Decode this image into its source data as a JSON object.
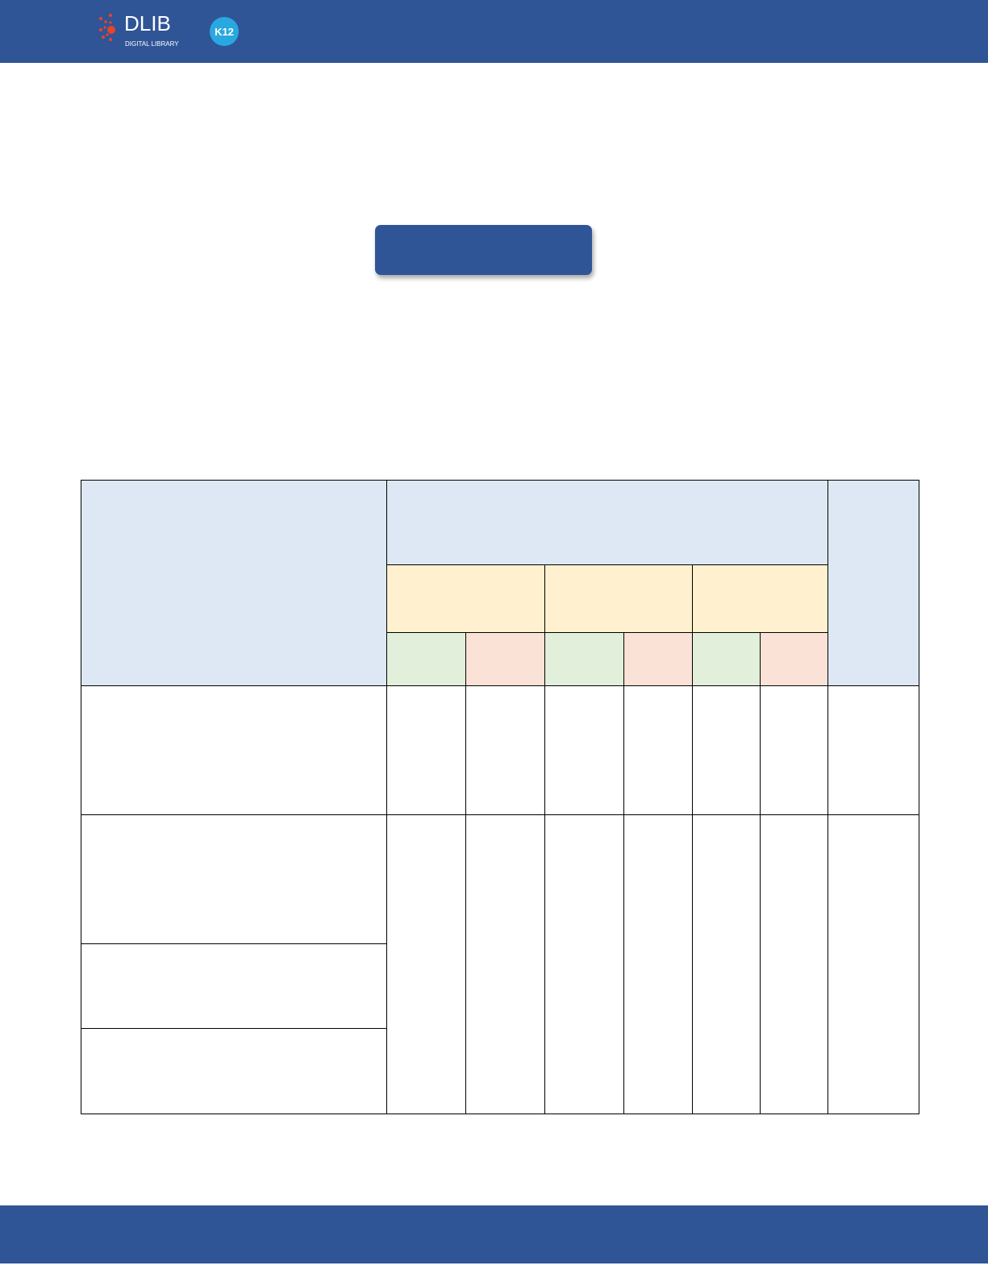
{
  "header": {
    "logo": {
      "wordmark": "DLIB",
      "tagline": "DIGITAL LIBRARY",
      "badge": "K12"
    },
    "background_color": "#2f5597"
  },
  "title_button": {
    "label": ""
  },
  "table": {
    "header_color": "#dde8f4",
    "group_color": "#fff1cf",
    "positive_color": "#e2efda",
    "negative_color": "#fbe2d6"
  },
  "footer": {
    "background_color": "#2f5597"
  }
}
